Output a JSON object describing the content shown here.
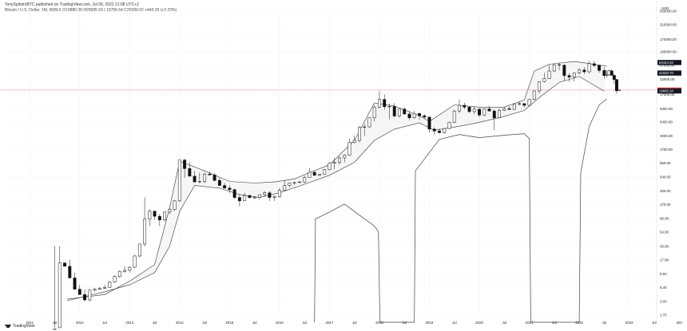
{
  "header": {
    "publisher": "TonySpilotroBTC",
    "published_on": "published on TradingView.com, Jul 06, 2022 21:08 UTC+2",
    "symbol": "Bitcoin / U.S. Dollar, 1M, INDEX",
    "ohlc": "O19880.38 H20685.93 L19756.64 C20399.02 +443.26 (+2.22%)"
  },
  "logo_text": "TradingView",
  "chart_data": {
    "type": "candlestick",
    "scale": "log",
    "currency_label": "USD",
    "y_ticks": [
      "550000.00",
      "310000.00",
      "170000.00",
      "100000.00",
      "57000.00",
      "32000.00",
      "17000.00",
      "9300.00",
      "5400.00",
      "3000.00",
      "1700.00",
      "960.00",
      "540.00",
      "300.00",
      "170.00",
      "96.00",
      "54.00",
      "30.00",
      "17.00",
      "9.50",
      "5.40",
      "3.00",
      "1.70"
    ],
    "x_ticks": [
      "2011",
      "Jul",
      "2012",
      "Jul",
      "2013",
      "Jul",
      "2014",
      "Jul",
      "2015",
      "Jul",
      "2016",
      "Jul",
      "2017",
      "Jul",
      "2018",
      "Jul",
      "2019",
      "Jul",
      "2020",
      "Jul",
      "2021",
      "Jul",
      "2022",
      "Jul",
      "2023",
      "Jul",
      "202"
    ],
    "price_tags": [
      {
        "text": "64444.40",
        "value": 64444.4,
        "color": "#131722"
      },
      {
        "text": "41520.70",
        "value": 41520.7,
        "color": "#131722"
      },
      {
        "text": "20399.02",
        "value": 20399.02,
        "color": "#f23645"
      },
      {
        "text": "19665.34",
        "value": 19665.34,
        "color": "#131722"
      }
    ],
    "last_price": 20399.02,
    "upper_band": [
      [
        2011.75,
        3.3
      ],
      [
        2012.5,
        4
      ],
      [
        2013.0,
        7
      ],
      [
        2013.5,
        14
      ],
      [
        2013.8,
        150
      ],
      [
        2014.0,
        1050
      ],
      [
        2014.5,
        700
      ],
      [
        2015.0,
        450
      ],
      [
        2015.5,
        420
      ],
      [
        2015.9,
        440
      ],
      [
        2016.3,
        500
      ],
      [
        2016.6,
        650
      ],
      [
        2017.0,
        900
      ],
      [
        2017.5,
        2500
      ],
      [
        2017.9,
        12000
      ],
      [
        2018.3,
        10500
      ],
      [
        2018.8,
        7000
      ],
      [
        2019.0,
        5500
      ],
      [
        2019.5,
        11000
      ],
      [
        2020.0,
        10000
      ],
      [
        2020.5,
        10000
      ],
      [
        2020.9,
        13500
      ],
      [
        2021.1,
        45000
      ],
      [
        2021.4,
        60000
      ],
      [
        2021.9,
        67000
      ],
      [
        2022.2,
        62000
      ],
      [
        2022.55,
        55000
      ]
    ],
    "lower_band": [
      [
        2011.75,
        3.1
      ],
      [
        2012.5,
        4.5
      ],
      [
        2013.0,
        6
      ],
      [
        2013.5,
        10
      ],
      [
        2013.8,
        30
      ],
      [
        2014.0,
        130
      ],
      [
        2014.3,
        380
      ],
      [
        2014.8,
        340
      ],
      [
        2015.2,
        260
      ],
      [
        2015.6,
        230
      ],
      [
        2016.0,
        280
      ],
      [
        2016.5,
        400
      ],
      [
        2017.0,
        580
      ],
      [
        2017.5,
        1000
      ],
      [
        2017.9,
        2500
      ],
      [
        2018.3,
        4000
      ],
      [
        2018.8,
        5200
      ],
      [
        2019.1,
        3800
      ],
      [
        2019.6,
        4500
      ],
      [
        2020.0,
        5300
      ],
      [
        2020.5,
        6800
      ],
      [
        2020.9,
        8700
      ],
      [
        2021.2,
        15000
      ],
      [
        2021.6,
        28000
      ],
      [
        2022.0,
        36000
      ],
      [
        2022.5,
        19500
      ]
    ],
    "oscillator": [
      [
        2016.7,
        0.8
      ],
      [
        2016.72,
        94
      ],
      [
        2017.0,
        125
      ],
      [
        2017.3,
        175
      ],
      [
        2017.6,
        110
      ],
      [
        2017.9,
        70
      ],
      [
        2017.98,
        55
      ],
      [
        2018.01,
        1.2
      ],
      [
        2018.7,
        1.2
      ],
      [
        2018.72,
        700
      ],
      [
        2019.2,
        2600
      ],
      [
        2019.6,
        3200
      ],
      [
        2020.0,
        2800
      ],
      [
        2020.5,
        3100
      ],
      [
        2020.9,
        3300
      ],
      [
        2021.0,
        2700
      ],
      [
        2021.03,
        1.2
      ],
      [
        2022.0,
        1.2
      ],
      [
        2022.03,
        650
      ],
      [
        2022.2,
        4500
      ],
      [
        2022.4,
        11000
      ],
      [
        2022.55,
        14000
      ]
    ],
    "candles": [
      [
        2011.5,
        0.95,
        1.0,
        30,
        0.95
      ],
      [
        2011.6,
        1.0,
        4,
        30,
        15
      ],
      [
        2011.7,
        15,
        30,
        30,
        13
      ],
      [
        2011.8,
        13,
        17,
        12,
        8
      ],
      [
        2011.9,
        8,
        10,
        6,
        5
      ],
      [
        2012.0,
        5,
        6,
        4,
        4
      ],
      [
        2012.1,
        4,
        5,
        3,
        3.2
      ],
      [
        2012.2,
        3.2,
        5,
        3,
        4.8
      ],
      [
        2012.3,
        4.8,
        5.3,
        4.5,
        5.0
      ],
      [
        2012.4,
        5.0,
        5.5,
        4.8,
        5.2
      ],
      [
        2012.5,
        5.2,
        6.0,
        5.0,
        5.4
      ],
      [
        2012.6,
        5.4,
        7.0,
        5.3,
        6.8
      ],
      [
        2012.7,
        6.8,
        9.0,
        6.5,
        8.5
      ],
      [
        2012.8,
        8.5,
        11,
        8,
        10.5
      ],
      [
        2012.9,
        10.5,
        13,
        10,
        11
      ],
      [
        2013.0,
        11,
        13,
        10,
        12.5
      ],
      [
        2013.1,
        12.5,
        21,
        12,
        20
      ],
      [
        2013.2,
        20,
        33,
        19,
        33
      ],
      [
        2013.3,
        33,
        230,
        30,
        93
      ],
      [
        2013.4,
        93,
        140,
        70,
        130
      ],
      [
        2013.5,
        130,
        130,
        90,
        105
      ],
      [
        2013.6,
        105,
        115,
        70,
        90
      ],
      [
        2013.7,
        90,
        130,
        85,
        125
      ],
      [
        2013.8,
        125,
        150,
        115,
        140
      ],
      [
        2013.9,
        140,
        210,
        130,
        200
      ],
      [
        2014.0,
        200,
        1100,
        190,
        1100
      ],
      [
        2014.1,
        1100,
        1160,
        520,
        770
      ],
      [
        2014.2,
        770,
        1000,
        600,
        560
      ],
      [
        2014.3,
        560,
        700,
        450,
        440
      ],
      [
        2014.4,
        440,
        650,
        420,
        450
      ],
      [
        2014.5,
        450,
        650,
        420,
        610
      ],
      [
        2014.6,
        610,
        680,
        580,
        590
      ],
      [
        2014.7,
        590,
        630,
        450,
        470
      ],
      [
        2014.8,
        470,
        520,
        380,
        380
      ],
      [
        2014.9,
        380,
        420,
        340,
        340
      ],
      [
        2015.0,
        340,
        380,
        280,
        320
      ],
      [
        2015.1,
        320,
        330,
        220,
        230
      ],
      [
        2015.2,
        230,
        260,
        160,
        200
      ],
      [
        2015.3,
        200,
        280,
        200,
        250
      ],
      [
        2015.4,
        250,
        260,
        220,
        230
      ],
      [
        2015.5,
        230,
        240,
        220,
        230
      ],
      [
        2015.6,
        230,
        260,
        210,
        260
      ],
      [
        2015.7,
        260,
        300,
        240,
        280
      ],
      [
        2015.8,
        280,
        300,
        200,
        230
      ],
      [
        2015.9,
        230,
        250,
        200,
        240
      ],
      [
        2016.0,
        240,
        340,
        230,
        310
      ],
      [
        2016.1,
        310,
        470,
        300,
        380
      ],
      [
        2016.2,
        380,
        430,
        350,
        420
      ],
      [
        2016.3,
        420,
        440,
        390,
        430
      ],
      [
        2016.4,
        430,
        460,
        420,
        440
      ],
      [
        2016.5,
        440,
        570,
        420,
        530
      ],
      [
        2016.6,
        530,
        780,
        520,
        660
      ],
      [
        2016.7,
        660,
        690,
        570,
        580
      ],
      [
        2016.8,
        580,
        620,
        560,
        610
      ],
      [
        2016.9,
        610,
        760,
        600,
        740
      ],
      [
        2017.0,
        740,
        1000,
        720,
        960
      ],
      [
        2017.1,
        960,
        1200,
        750,
        1000
      ],
      [
        2017.2,
        1000,
        1300,
        900,
        1200
      ],
      [
        2017.3,
        1200,
        1400,
        1000,
        1350
      ],
      [
        2017.4,
        1350,
        2700,
        1300,
        2300
      ],
      [
        2017.5,
        2300,
        3000,
        2200,
        2500
      ],
      [
        2017.6,
        2500,
        4500,
        2300,
        4300
      ],
      [
        2017.7,
        4300,
        5000,
        3000,
        4400
      ],
      [
        2017.8,
        4400,
        6500,
        4200,
        6400
      ],
      [
        2017.9,
        6400,
        11000,
        5500,
        10000
      ],
      [
        2018.0,
        10000,
        19500,
        9500,
        13800
      ],
      [
        2018.1,
        13800,
        17000,
        9000,
        10200
      ],
      [
        2018.2,
        10200,
        11700,
        6000,
        10300
      ],
      [
        2018.3,
        10300,
        11800,
        6500,
        6900
      ],
      [
        2018.4,
        6900,
        9500,
        6500,
        9200
      ],
      [
        2018.5,
        9200,
        9900,
        7300,
        7500
      ],
      [
        2018.6,
        7500,
        8500,
        5800,
        6400
      ],
      [
        2018.7,
        6400,
        8500,
        6100,
        7700
      ],
      [
        2018.8,
        7700,
        7800,
        5900,
        7000
      ],
      [
        2018.9,
        7000,
        7400,
        6200,
        6600
      ],
      [
        2019.0,
        6600,
        6700,
        3500,
        4000
      ],
      [
        2019.1,
        4000,
        4300,
        3200,
        3700
      ],
      [
        2019.2,
        3700,
        4100,
        3300,
        3450
      ],
      [
        2019.3,
        3450,
        4200,
        3300,
        4100
      ],
      [
        2019.4,
        4100,
        5500,
        4000,
        5300
      ],
      [
        2019.5,
        5300,
        9000,
        5200,
        8500
      ],
      [
        2019.6,
        8500,
        13800,
        7800,
        10800
      ],
      [
        2019.7,
        10800,
        12000,
        9100,
        10000
      ],
      [
        2019.8,
        10000,
        10500,
        7800,
        8300
      ],
      [
        2019.9,
        8300,
        10300,
        7400,
        9200
      ],
      [
        2020.0,
        9200,
        9500,
        6600,
        7200
      ],
      [
        2020.1,
        7200,
        9500,
        6900,
        9300
      ],
      [
        2020.2,
        9300,
        10500,
        8500,
        8500
      ],
      [
        2020.3,
        8500,
        9200,
        3800,
        6400
      ],
      [
        2020.4,
        6400,
        9500,
        6200,
        8700
      ],
      [
        2020.5,
        8700,
        10000,
        8500,
        9400
      ],
      [
        2020.6,
        9400,
        10400,
        8900,
        9100
      ],
      [
        2020.7,
        9100,
        11500,
        8900,
        11300
      ],
      [
        2020.8,
        11300,
        12400,
        10600,
        11600
      ],
      [
        2020.9,
        11600,
        11700,
        9900,
        10800
      ],
      [
        2021.0,
        10800,
        14000,
        10400,
        13800
      ],
      [
        2021.1,
        13800,
        19900,
        13200,
        19700
      ],
      [
        2021.2,
        19700,
        29300,
        17600,
        29000
      ],
      [
        2021.3,
        29000,
        41900,
        28000,
        33100
      ],
      [
        2021.4,
        33100,
        58300,
        32300,
        45200
      ],
      [
        2021.5,
        45200,
        61700,
        43000,
        58800
      ],
      [
        2021.6,
        58800,
        64800,
        47000,
        57700
      ],
      [
        2021.7,
        57700,
        59600,
        30000,
        37300
      ],
      [
        2021.8,
        37300,
        41300,
        28800,
        35000
      ],
      [
        2021.9,
        35000,
        42500,
        29300,
        41500
      ],
      [
        2022.0,
        41500,
        50500,
        39600,
        47100
      ],
      [
        2022.1,
        47100,
        52900,
        39600,
        43800
      ],
      [
        2022.2,
        43800,
        69000,
        40600,
        61300
      ],
      [
        2022.3,
        61300,
        68800,
        53300,
        57000
      ],
      [
        2022.4,
        57000,
        59100,
        42000,
        46200
      ],
      [
        2022.5,
        46200,
        52100,
        32900,
        37500
      ],
      [
        2022.55,
        37500,
        47400,
        34300,
        38500
      ],
      [
        2022.6,
        38500,
        48200,
        37200,
        45500
      ],
      [
        2022.65,
        45500,
        48000,
        37400,
        37700
      ],
      [
        2022.7,
        37700,
        40000,
        26700,
        31800
      ],
      [
        2022.75,
        31800,
        32000,
        17600,
        19800
      ],
      [
        2022.8,
        19880,
        20690,
        19760,
        20400
      ]
    ]
  }
}
